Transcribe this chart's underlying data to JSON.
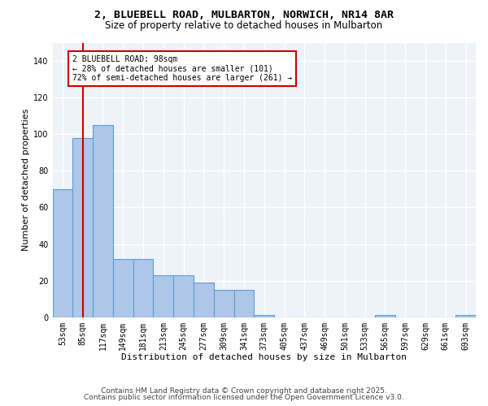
{
  "title_line1": "2, BLUEBELL ROAD, MULBARTON, NORWICH, NR14 8AR",
  "title_line2": "Size of property relative to detached houses in Mulbarton",
  "xlabel": "Distribution of detached houses by size in Mulbarton",
  "ylabel": "Number of detached properties",
  "categories": [
    "53sqm",
    "85sqm",
    "117sqm",
    "149sqm",
    "181sqm",
    "213sqm",
    "245sqm",
    "277sqm",
    "309sqm",
    "341sqm",
    "373sqm",
    "405sqm",
    "437sqm",
    "469sqm",
    "501sqm",
    "533sqm",
    "565sqm",
    "597sqm",
    "629sqm",
    "661sqm",
    "693sqm"
  ],
  "values": [
    70,
    98,
    105,
    32,
    32,
    23,
    23,
    19,
    15,
    15,
    1,
    0,
    0,
    0,
    0,
    0,
    1,
    0,
    0,
    0,
    1
  ],
  "bar_color": "#aec6e8",
  "bar_edgecolor": "#5a9fd4",
  "bar_linewidth": 0.8,
  "vline_color": "#cc0000",
  "annotation_text": "2 BLUEBELL ROAD: 98sqm\n← 28% of detached houses are smaller (101)\n72% of semi-detached houses are larger (261) →",
  "annotation_box_edgecolor": "#cc0000",
  "annotation_box_facecolor": "#ffffff",
  "ylim": [
    0,
    150
  ],
  "yticks": [
    0,
    20,
    40,
    60,
    80,
    100,
    120,
    140
  ],
  "footer_line1": "Contains HM Land Registry data © Crown copyright and database right 2025.",
  "footer_line2": "Contains public sector information licensed under the Open Government Licence v3.0.",
  "background_color": "#eef2f9",
  "grid_color": "#ffffff",
  "fig_bg_color": "#ffffff",
  "title_fontsize": 9.5,
  "subtitle_fontsize": 8.5,
  "axis_label_fontsize": 8,
  "tick_fontsize": 7,
  "annotation_fontsize": 7,
  "footer_fontsize": 6.5
}
